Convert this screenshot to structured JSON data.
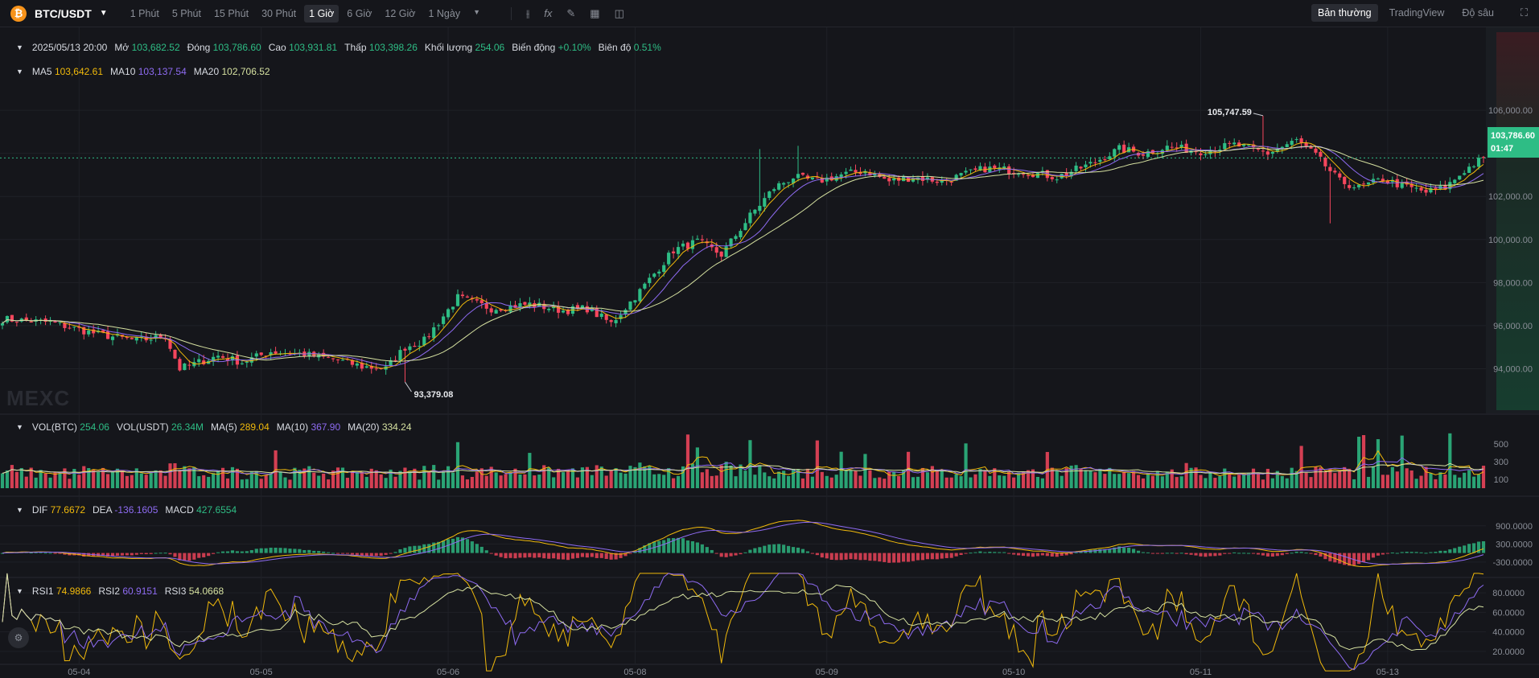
{
  "header": {
    "pair": "BTC/USDT",
    "intervals": [
      "1 Phút",
      "5 Phút",
      "15 Phút",
      "30 Phút",
      "1 Giờ",
      "6 Giờ",
      "12 Giờ",
      "1 Ngày"
    ],
    "active_interval": "1 Giờ",
    "views": [
      "Bản thường",
      "TradingView",
      "Độ sâu"
    ],
    "active_view": "Bản thường"
  },
  "info": {
    "date": "2025/05/13 20:00",
    "open_label": "Mở",
    "open": "103,682.52",
    "close_label": "Đóng",
    "close": "103,786.60",
    "high_label": "Cao",
    "high": "103,931.81",
    "low_label": "Thấp",
    "low": "103,398.26",
    "volume_label": "Khối lượng",
    "volume": "254.06",
    "change_label": "Biến động",
    "change": "+0.10%",
    "amplitude_label": "Biên độ",
    "amplitude": "0.51%"
  },
  "ma": {
    "ma5_label": "MA5",
    "ma5": "103,642.61",
    "ma10_label": "MA10",
    "ma10": "103,137.54",
    "ma20_label": "MA20",
    "ma20": "102,706.52"
  },
  "vol": {
    "vol_btc_label": "VOL(BTC)",
    "vol_btc": "254.06",
    "vol_usdt_label": "VOL(USDT)",
    "vol_usdt": "26.34M",
    "ma5_label": "MA(5)",
    "ma5": "289.04",
    "ma10_label": "MA(10)",
    "ma10": "367.90",
    "ma20_label": "MA(20)",
    "ma20": "334.24"
  },
  "macd": {
    "dif_label": "DIF",
    "dif": "77.6672",
    "dea_label": "DEA",
    "dea": "-136.1605",
    "macd_label": "MACD",
    "macd": "427.6554"
  },
  "rsi": {
    "rsi1_label": "RSI1",
    "rsi1": "74.9866",
    "rsi2_label": "RSI2",
    "rsi2": "60.9151",
    "rsi3_label": "RSI3",
    "rsi3": "54.0668"
  },
  "price_badge": {
    "price": "103,786.60",
    "countdown": "01:47"
  },
  "annotations": {
    "high": "105,747.59",
    "low": "93,379.08"
  },
  "watermark": "MEXC",
  "colors": {
    "up": "#2ebd85",
    "down": "#f6465d",
    "ma5": "#f0b90b",
    "ma10": "#8e6bf2",
    "ma20": "#d5e0a0",
    "rsi1": "#f0b90b",
    "rsi2": "#8e6bf2",
    "rsi3": "#d5e0a0"
  },
  "icons": [
    "bitcoin-icon",
    "chevron-down-icon",
    "indicator-icon",
    "formula-icon",
    "draw-icon",
    "layout-icon",
    "camera-icon",
    "fullscreen-icon",
    "settings-icon"
  ],
  "chart_data": {
    "type": "candlestick",
    "price_axis": {
      "ticks": [
        94000,
        96000,
        98000,
        100000,
        102000,
        104000,
        106000
      ],
      "tick_labels": [
        "94,000.00",
        "96,000.00",
        "98,000.00",
        "100,000.00",
        "102,000.00",
        "",
        "106,000.00"
      ],
      "range": [
        92000,
        107200
      ]
    },
    "volume_axis": {
      "ticks": [
        100,
        300,
        500
      ],
      "tick_labels": [
        "100",
        "300",
        "500"
      ],
      "range": [
        0,
        700
      ]
    },
    "macd_axis": {
      "ticks": [
        -300,
        300,
        900
      ],
      "tick_labels": [
        "-300.0000",
        "300.0000",
        "900.0000"
      ],
      "range": [
        -650,
        1400
      ]
    },
    "rsi_axis": {
      "ticks": [
        20,
        40,
        60,
        80
      ],
      "tick_labels": [
        "20.0000",
        "40.0000",
        "60.0000",
        "80.0000"
      ],
      "range": [
        10,
        90
      ]
    },
    "x_axis": {
      "labels": [
        "05-04",
        "05-05",
        "05-06",
        "05-08",
        "05-09",
        "05-10",
        "05-11",
        "05-13"
      ]
    },
    "price_anchors": [
      [
        0,
        96300
      ],
      [
        10,
        96150
      ],
      [
        20,
        95600
      ],
      [
        28,
        95300
      ],
      [
        34,
        95500
      ],
      [
        37,
        94000
      ],
      [
        45,
        94600
      ],
      [
        50,
        94300
      ],
      [
        56,
        94800
      ],
      [
        62,
        94700
      ],
      [
        70,
        94400
      ],
      [
        75,
        94100
      ],
      [
        80,
        94000
      ],
      [
        84,
        95000
      ],
      [
        88,
        95300
      ],
      [
        95,
        97300
      ],
      [
        102,
        96800
      ],
      [
        110,
        97000
      ],
      [
        117,
        96700
      ],
      [
        122,
        96800
      ],
      [
        127,
        96100
      ],
      [
        133,
        97600
      ],
      [
        140,
        99500
      ],
      [
        145,
        99900
      ],
      [
        150,
        99300
      ],
      [
        156,
        101100
      ],
      [
        161,
        102400
      ],
      [
        165,
        102900
      ],
      [
        170,
        102700
      ],
      [
        175,
        103000
      ],
      [
        180,
        103200
      ],
      [
        185,
        102700
      ],
      [
        190,
        102900
      ],
      [
        196,
        102700
      ],
      [
        205,
        103300
      ],
      [
        212,
        103200
      ],
      [
        220,
        102900
      ],
      [
        227,
        103500
      ],
      [
        233,
        104200
      ],
      [
        238,
        104000
      ],
      [
        243,
        104300
      ],
      [
        250,
        104100
      ],
      [
        257,
        104400
      ],
      [
        264,
        104000
      ],
      [
        270,
        104600
      ],
      [
        274,
        103900
      ],
      [
        279,
        102700
      ],
      [
        283,
        102400
      ],
      [
        288,
        102800
      ],
      [
        292,
        102500
      ],
      [
        297,
        102200
      ],
      [
        301,
        102400
      ],
      [
        305,
        103200
      ],
      [
        309,
        103790
      ]
    ]
  }
}
